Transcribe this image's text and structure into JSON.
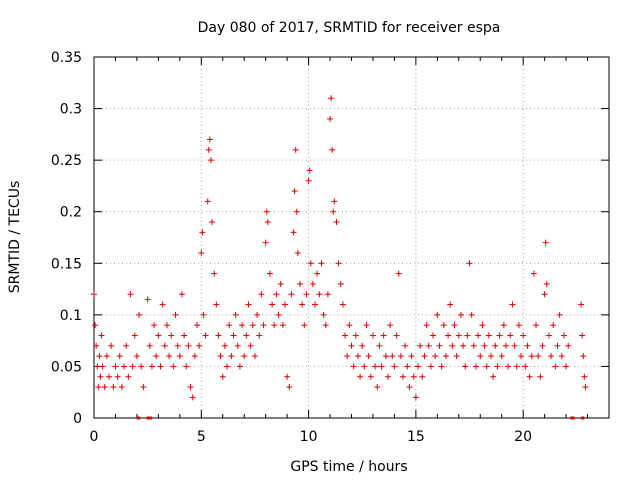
{
  "chart_data": {
    "type": "scatter",
    "title": "Day 080 of 2017, SRMTID for receiver espa",
    "xlabel": "GPS time / hours",
    "ylabel": "SRMTID / TECUs",
    "xlim": [
      0,
      24
    ],
    "ylim": [
      0,
      0.35
    ],
    "xticks": [
      0,
      5,
      10,
      15,
      20
    ],
    "xtick_labels": [
      "0",
      "5",
      "10",
      "15",
      "20"
    ],
    "yticks": [
      0,
      0.05,
      0.1,
      0.15,
      0.2,
      0.25,
      0.3,
      0.35
    ],
    "ytick_labels": [
      "0",
      "0.05",
      "0.1",
      "0.15",
      "0.2",
      "0.25",
      "0.3",
      "0.35"
    ],
    "grid": true,
    "marker": "+",
    "color": "#e00000",
    "series": [
      {
        "name": "SRMTID",
        "points": [
          [
            0.0,
            0.12
          ],
          [
            0.05,
            0.09
          ],
          [
            0.1,
            0.07
          ],
          [
            0.15,
            0.05
          ],
          [
            0.2,
            0.03
          ],
          [
            0.25,
            0.06
          ],
          [
            0.3,
            0.04
          ],
          [
            0.35,
            0.08
          ],
          [
            0.4,
            0.05
          ],
          [
            0.5,
            0.03
          ],
          [
            0.6,
            0.06
          ],
          [
            0.7,
            0.04
          ],
          [
            0.8,
            0.07
          ],
          [
            0.9,
            0.03
          ],
          [
            1.0,
            0.05
          ],
          [
            1.1,
            0.04
          ],
          [
            1.2,
            0.06
          ],
          [
            1.3,
            0.03
          ],
          [
            1.4,
            0.05
          ],
          [
            1.5,
            0.07
          ],
          [
            1.6,
            0.04
          ],
          [
            1.7,
            0.12
          ],
          [
            1.8,
            0.05
          ],
          [
            1.9,
            0.08
          ],
          [
            2.0,
            0.06
          ],
          [
            2.1,
            0.1
          ],
          [
            2.2,
            0.05
          ],
          [
            2.3,
            0.03
          ],
          [
            2.5,
            0.115
          ],
          [
            2.6,
            0.07
          ],
          [
            2.7,
            0.05
          ],
          [
            2.8,
            0.09
          ],
          [
            2.9,
            0.06
          ],
          [
            3.0,
            0.08
          ],
          [
            3.1,
            0.05
          ],
          [
            3.2,
            0.11
          ],
          [
            3.3,
            0.07
          ],
          [
            3.4,
            0.09
          ],
          [
            3.5,
            0.06
          ],
          [
            3.6,
            0.08
          ],
          [
            3.7,
            0.05
          ],
          [
            3.8,
            0.1
          ],
          [
            3.9,
            0.07
          ],
          [
            4.0,
            0.06
          ],
          [
            4.1,
            0.12
          ],
          [
            4.2,
            0.08
          ],
          [
            4.3,
            0.05
          ],
          [
            4.4,
            0.07
          ],
          [
            4.5,
            0.03
          ],
          [
            4.6,
            0.02
          ],
          [
            4.7,
            0.06
          ],
          [
            4.8,
            0.09
          ],
          [
            4.9,
            0.07
          ],
          [
            5.0,
            0.16
          ],
          [
            5.05,
            0.18
          ],
          [
            5.1,
            0.1
          ],
          [
            5.2,
            0.08
          ],
          [
            5.3,
            0.21
          ],
          [
            5.35,
            0.26
          ],
          [
            5.4,
            0.27
          ],
          [
            5.45,
            0.25
          ],
          [
            5.5,
            0.19
          ],
          [
            5.6,
            0.14
          ],
          [
            5.7,
            0.11
          ],
          [
            5.8,
            0.08
          ],
          [
            5.9,
            0.06
          ],
          [
            6.0,
            0.04
          ],
          [
            6.1,
            0.07
          ],
          [
            6.2,
            0.05
          ],
          [
            6.3,
            0.09
          ],
          [
            6.4,
            0.06
          ],
          [
            6.5,
            0.08
          ],
          [
            6.6,
            0.1
          ],
          [
            6.7,
            0.07
          ],
          [
            6.8,
            0.05
          ],
          [
            6.9,
            0.09
          ],
          [
            7.0,
            0.06
          ],
          [
            7.1,
            0.08
          ],
          [
            7.2,
            0.11
          ],
          [
            7.3,
            0.07
          ],
          [
            7.4,
            0.09
          ],
          [
            7.5,
            0.06
          ],
          [
            7.6,
            0.1
          ],
          [
            7.7,
            0.08
          ],
          [
            7.8,
            0.12
          ],
          [
            7.9,
            0.09
          ],
          [
            8.0,
            0.17
          ],
          [
            8.05,
            0.2
          ],
          [
            8.1,
            0.19
          ],
          [
            8.2,
            0.14
          ],
          [
            8.3,
            0.11
          ],
          [
            8.4,
            0.09
          ],
          [
            8.5,
            0.12
          ],
          [
            8.6,
            0.1
          ],
          [
            8.7,
            0.13
          ],
          [
            8.8,
            0.09
          ],
          [
            8.9,
            0.11
          ],
          [
            9.0,
            0.04
          ],
          [
            9.1,
            0.03
          ],
          [
            9.2,
            0.12
          ],
          [
            9.3,
            0.18
          ],
          [
            9.35,
            0.22
          ],
          [
            9.4,
            0.26
          ],
          [
            9.45,
            0.2
          ],
          [
            9.5,
            0.16
          ],
          [
            9.6,
            0.13
          ],
          [
            9.7,
            0.11
          ],
          [
            9.8,
            0.09
          ],
          [
            9.9,
            0.12
          ],
          [
            10.0,
            0.23
          ],
          [
            10.05,
            0.24
          ],
          [
            10.1,
            0.15
          ],
          [
            10.2,
            0.13
          ],
          [
            10.3,
            0.11
          ],
          [
            10.4,
            0.14
          ],
          [
            10.5,
            0.12
          ],
          [
            10.6,
            0.15
          ],
          [
            10.7,
            0.1
          ],
          [
            10.8,
            0.09
          ],
          [
            10.9,
            0.12
          ],
          [
            11.0,
            0.29
          ],
          [
            11.05,
            0.31
          ],
          [
            11.1,
            0.26
          ],
          [
            11.15,
            0.2
          ],
          [
            11.2,
            0.21
          ],
          [
            11.3,
            0.19
          ],
          [
            11.4,
            0.15
          ],
          [
            11.5,
            0.13
          ],
          [
            11.6,
            0.11
          ],
          [
            11.7,
            0.08
          ],
          [
            11.8,
            0.06
          ],
          [
            11.9,
            0.09
          ],
          [
            12.0,
            0.07
          ],
          [
            12.1,
            0.05
          ],
          [
            12.2,
            0.08
          ],
          [
            12.3,
            0.06
          ],
          [
            12.4,
            0.04
          ],
          [
            12.5,
            0.07
          ],
          [
            12.6,
            0.05
          ],
          [
            12.7,
            0.09
          ],
          [
            12.8,
            0.06
          ],
          [
            12.9,
            0.04
          ],
          [
            13.0,
            0.08
          ],
          [
            13.1,
            0.05
          ],
          [
            13.2,
            0.03
          ],
          [
            13.3,
            0.07
          ],
          [
            13.4,
            0.05
          ],
          [
            13.5,
            0.08
          ],
          [
            13.6,
            0.06
          ],
          [
            13.7,
            0.04
          ],
          [
            13.8,
            0.09
          ],
          [
            13.9,
            0.06
          ],
          [
            14.0,
            0.05
          ],
          [
            14.1,
            0.08
          ],
          [
            14.2,
            0.14
          ],
          [
            14.3,
            0.06
          ],
          [
            14.4,
            0.04
          ],
          [
            14.5,
            0.07
          ],
          [
            14.6,
            0.05
          ],
          [
            14.7,
            0.03
          ],
          [
            14.8,
            0.06
          ],
          [
            14.9,
            0.04
          ],
          [
            15.0,
            0.02
          ],
          [
            15.1,
            0.05
          ],
          [
            15.2,
            0.07
          ],
          [
            15.3,
            0.04
          ],
          [
            15.4,
            0.06
          ],
          [
            15.5,
            0.09
          ],
          [
            15.6,
            0.07
          ],
          [
            15.7,
            0.05
          ],
          [
            15.8,
            0.08
          ],
          [
            15.9,
            0.06
          ],
          [
            16.0,
            0.1
          ],
          [
            16.1,
            0.07
          ],
          [
            16.2,
            0.05
          ],
          [
            16.3,
            0.09
          ],
          [
            16.4,
            0.06
          ],
          [
            16.5,
            0.08
          ],
          [
            16.6,
            0.11
          ],
          [
            16.7,
            0.07
          ],
          [
            16.8,
            0.09
          ],
          [
            16.9,
            0.06
          ],
          [
            17.0,
            0.08
          ],
          [
            17.1,
            0.1
          ],
          [
            17.2,
            0.07
          ],
          [
            17.3,
            0.05
          ],
          [
            17.4,
            0.08
          ],
          [
            17.5,
            0.15
          ],
          [
            17.6,
            0.1
          ],
          [
            17.7,
            0.07
          ],
          [
            17.8,
            0.05
          ],
          [
            17.9,
            0.08
          ],
          [
            18.0,
            0.06
          ],
          [
            18.1,
            0.09
          ],
          [
            18.2,
            0.07
          ],
          [
            18.3,
            0.05
          ],
          [
            18.4,
            0.08
          ],
          [
            18.5,
            0.06
          ],
          [
            18.6,
            0.04
          ],
          [
            18.7,
            0.07
          ],
          [
            18.8,
            0.05
          ],
          [
            18.9,
            0.08
          ],
          [
            19.0,
            0.06
          ],
          [
            19.1,
            0.09
          ],
          [
            19.2,
            0.07
          ],
          [
            19.3,
            0.05
          ],
          [
            19.4,
            0.08
          ],
          [
            19.5,
            0.11
          ],
          [
            19.6,
            0.07
          ],
          [
            19.7,
            0.05
          ],
          [
            19.8,
            0.09
          ],
          [
            19.9,
            0.06
          ],
          [
            20.0,
            0.08
          ],
          [
            20.1,
            0.05
          ],
          [
            20.2,
            0.07
          ],
          [
            20.3,
            0.04
          ],
          [
            20.4,
            0.06
          ],
          [
            20.5,
            0.14
          ],
          [
            20.6,
            0.09
          ],
          [
            20.7,
            0.06
          ],
          [
            20.8,
            0.04
          ],
          [
            20.9,
            0.07
          ],
          [
            21.0,
            0.12
          ],
          [
            21.05,
            0.17
          ],
          [
            21.1,
            0.13
          ],
          [
            21.2,
            0.08
          ],
          [
            21.3,
            0.06
          ],
          [
            21.4,
            0.09
          ],
          [
            21.5,
            0.05
          ],
          [
            21.6,
            0.07
          ],
          [
            21.7,
            0.1
          ],
          [
            21.8,
            0.06
          ],
          [
            21.9,
            0.08
          ],
          [
            22.0,
            0.05
          ],
          [
            22.1,
            0.07
          ],
          [
            22.7,
            0.11
          ],
          [
            22.75,
            0.08
          ],
          [
            22.8,
            0.06
          ],
          [
            22.85,
            0.04
          ],
          [
            22.9,
            0.03
          ]
        ]
      }
    ],
    "zero_value_runs_hours": [
      [
        2.0,
        2.1
      ],
      [
        2.45,
        2.65
      ],
      [
        22.2,
        22.35
      ],
      [
        22.7,
        22.8
      ]
    ]
  }
}
